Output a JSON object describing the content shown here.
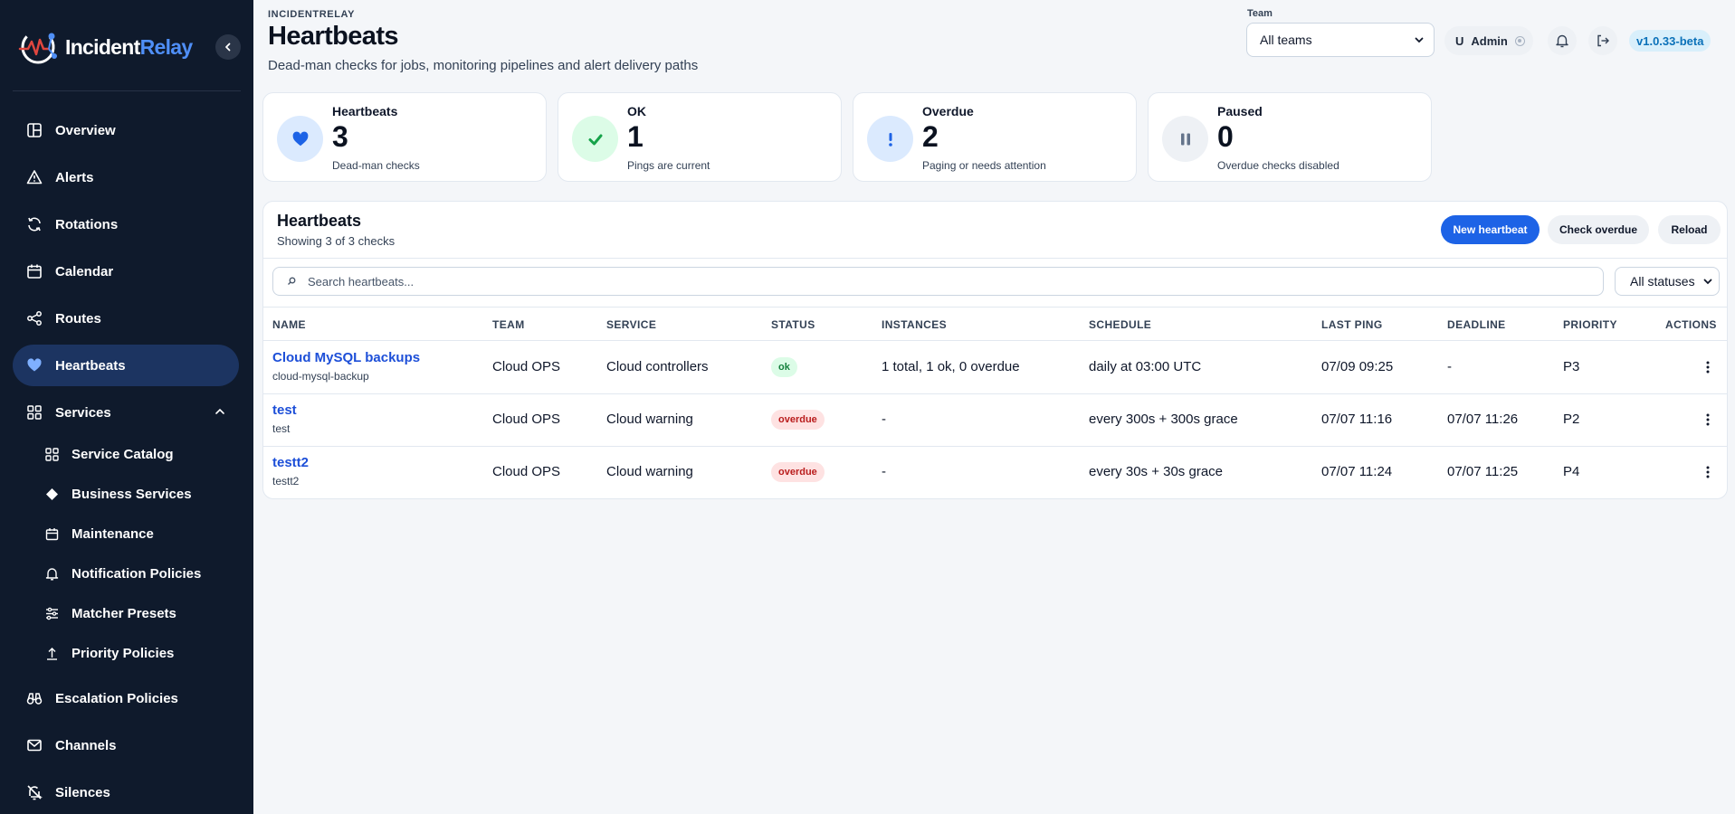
{
  "app": {
    "name_part1": "Incident",
    "name_part2": "Relay",
    "brand_small": "INCIDENTRELAY",
    "version": "v1.0.33-beta"
  },
  "colors": {
    "sidebar_bg": "#0f1a2c",
    "active_nav": "#1c3461",
    "primary": "#1d63e6",
    "link": "#1d4fd8",
    "ok": "#15803d",
    "overdue": "#b91c1c"
  },
  "sidebar": {
    "collapse_icon": "chevron-left-icon",
    "items": [
      {
        "label": "Overview",
        "icon": "layout-dashboard-icon"
      },
      {
        "label": "Alerts",
        "icon": "alert-triangle-icon"
      },
      {
        "label": "Rotations",
        "icon": "refresh-icon"
      },
      {
        "label": "Calendar",
        "icon": "calendar-icon"
      },
      {
        "label": "Routes",
        "icon": "route-icon"
      },
      {
        "label": "Heartbeats",
        "icon": "heart-icon",
        "active": true
      },
      {
        "label": "Services",
        "icon": "grid-icon",
        "expanded": true
      },
      {
        "label": "Escalation Policies",
        "icon": "binoculars-icon"
      },
      {
        "label": "Channels",
        "icon": "mail-icon"
      },
      {
        "label": "Silences",
        "icon": "bell-off-icon"
      }
    ],
    "services_children": [
      {
        "label": "Service Catalog",
        "icon": "grid-icon"
      },
      {
        "label": "Business Services",
        "icon": "diamond-icon"
      },
      {
        "label": "Maintenance",
        "icon": "calendar-icon"
      },
      {
        "label": "Notification Policies",
        "icon": "bell-icon"
      },
      {
        "label": "Matcher Presets",
        "icon": "sliders-icon"
      },
      {
        "label": "Priority Policies",
        "icon": "arrow-up-bar-icon"
      }
    ]
  },
  "header": {
    "title": "Heartbeats",
    "subtitle": "Dead-man checks for jobs, monitoring pipelines and alert delivery paths",
    "team_label": "Team",
    "team_value": "All teams",
    "user_initial": "U",
    "user_name": "Admin"
  },
  "stats": [
    {
      "label": "Heartbeats",
      "value": "3",
      "caption": "Dead-man checks",
      "icon": "heart-icon"
    },
    {
      "label": "OK",
      "value": "1",
      "caption": "Pings are current",
      "icon": "check-icon"
    },
    {
      "label": "Overdue",
      "value": "2",
      "caption": "Paging or needs attention",
      "icon": "exclamation-icon"
    },
    {
      "label": "Paused",
      "value": "0",
      "caption": "Overdue checks disabled",
      "icon": "pause-icon"
    }
  ],
  "panel": {
    "title": "Heartbeats",
    "subtitle": "Showing 3 of 3 checks",
    "new_button": "New heartbeat",
    "check_button": "Check overdue",
    "reload_button": "Reload",
    "search_placeholder": "Search heartbeats...",
    "status_filter": "All statuses"
  },
  "table": {
    "columns": [
      "NAME",
      "TEAM",
      "SERVICE",
      "STATUS",
      "INSTANCES",
      "SCHEDULE",
      "LAST PING",
      "DEADLINE",
      "PRIORITY",
      "ACTIONS"
    ],
    "rows": [
      {
        "name": "Cloud MySQL backups",
        "slug": "cloud-mysql-backup",
        "team": "Cloud OPS",
        "service": "Cloud controllers",
        "status": "ok",
        "instances": "1 total, 1 ok, 0 overdue",
        "schedule": "daily at 03:00 UTC",
        "last_ping": "07/09 09:25",
        "deadline": "-",
        "priority": "P3"
      },
      {
        "name": "test",
        "slug": "test",
        "team": "Cloud OPS",
        "service": "Cloud warning",
        "status": "overdue",
        "instances": "-",
        "schedule": "every 300s + 300s grace",
        "last_ping": "07/07 11:16",
        "deadline": "07/07 11:26",
        "priority": "P2"
      },
      {
        "name": "testt2",
        "slug": "testt2",
        "team": "Cloud OPS",
        "service": "Cloud warning",
        "status": "overdue",
        "instances": "-",
        "schedule": "every 30s + 30s grace",
        "last_ping": "07/07 11:24",
        "deadline": "07/07 11:25",
        "priority": "P4"
      }
    ]
  }
}
